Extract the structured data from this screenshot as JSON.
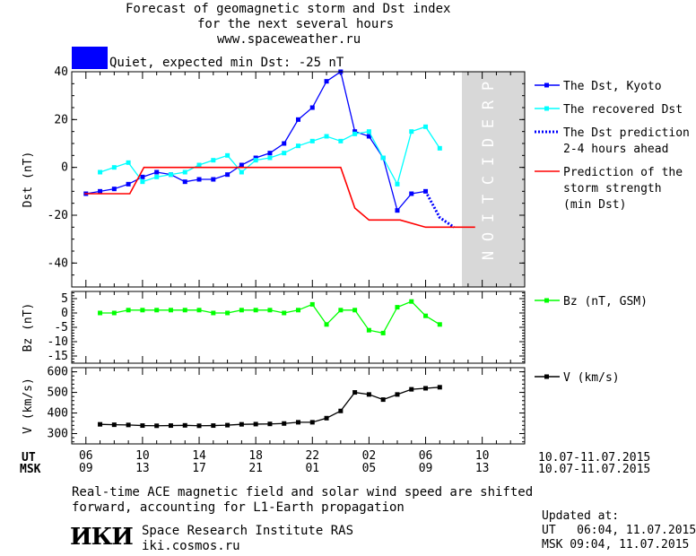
{
  "header": {
    "title_line1": "Forecast of geomagnetic storm and Dst index",
    "title_line2": "for the next several hours",
    "title_line3": "www.spaceweather.ru",
    "status_text": "Quiet, expected min Dst: -25 nT",
    "status_color": "#0000ff"
  },
  "chart_data": [
    {
      "type": "line",
      "ylabel": "Dst (nT)",
      "ylim": [
        -50,
        40
      ],
      "yticks": [
        40,
        20,
        0,
        -20,
        -40
      ],
      "prediction_label": "PREDICTION",
      "series": [
        {
          "name": "The Dst, Kyoto",
          "color": "#0000ff",
          "x": [
            6,
            7,
            8,
            9,
            10,
            11,
            12,
            13,
            14,
            15,
            16,
            17,
            18,
            19,
            20,
            21,
            22,
            23,
            24,
            25,
            26,
            27,
            28,
            29,
            30
          ],
          "y": [
            -11,
            -10,
            -9,
            -7,
            -4,
            -2,
            -3,
            -6,
            -5,
            -5,
            -3,
            1,
            4,
            6,
            10,
            20,
            25,
            36,
            40,
            15,
            13,
            4,
            -18,
            -11,
            -10
          ]
        },
        {
          "name": "The recovered Dst",
          "color": "#00ffff",
          "x": [
            7,
            8,
            9,
            10,
            11,
            12,
            13,
            14,
            15,
            16,
            17,
            18,
            19,
            20,
            21,
            22,
            23,
            24,
            25,
            26,
            27,
            28,
            29,
            30,
            31
          ],
          "y": [
            -2,
            0,
            2,
            -6,
            -4,
            -3,
            -2,
            1,
            3,
            5,
            -2,
            3,
            4,
            6,
            9,
            11,
            13,
            11,
            14,
            15,
            4,
            -7,
            15,
            17,
            8
          ]
        },
        {
          "name": "The Dst prediction\n2-4 hours ahead",
          "color": "#0000ff",
          "x": [
            30,
            31,
            32
          ],
          "y": [
            -10,
            -21,
            -25
          ]
        },
        {
          "name": "Prediction of the\nstorm strength\n(min Dst)",
          "color": "#ff0000",
          "x": [
            5.9,
            9.1,
            10.1,
            24,
            25,
            26,
            28.2,
            30,
            33.5
          ],
          "y": [
            -11,
            -11,
            0,
            0,
            -17,
            -22,
            -22,
            -25,
            -25
          ]
        }
      ]
    },
    {
      "type": "line",
      "ylabel": "Bz (nT)",
      "ylim": [
        -17.5,
        7.5
      ],
      "yticks": [
        5,
        0,
        -5,
        -10,
        -15
      ],
      "series": [
        {
          "name": "Bz (nT, GSM)",
          "color": "#00ff00",
          "x": [
            7,
            8,
            9,
            10,
            11,
            12,
            13,
            14,
            15,
            16,
            17,
            18,
            19,
            20,
            21,
            22,
            23,
            24,
            25,
            26,
            27,
            28,
            29,
            30,
            31
          ],
          "y": [
            0,
            0,
            1,
            1,
            1,
            1,
            1,
            1,
            0,
            0,
            1,
            1,
            1,
            0,
            1,
            3,
            -4,
            1,
            1,
            -6,
            -7,
            2,
            4,
            -1,
            -4
          ]
        }
      ]
    },
    {
      "type": "line",
      "ylabel": "V (km/s)",
      "ylim": [
        250,
        620
      ],
      "yticks": [
        600,
        500,
        400,
        300
      ],
      "series": [
        {
          "name": "V (km/s)",
          "color": "#000000",
          "x": [
            7,
            8,
            9,
            10,
            11,
            12,
            13,
            14,
            15,
            16,
            17,
            18,
            19,
            20,
            21,
            22,
            23,
            24,
            25,
            26,
            27,
            28,
            29,
            30,
            31
          ],
          "y": [
            345,
            343,
            342,
            339,
            338,
            339,
            340,
            338,
            339,
            341,
            345,
            346,
            347,
            349,
            355,
            355,
            375,
            410,
            500,
            490,
            465,
            490,
            515,
            520,
            525
          ]
        }
      ]
    }
  ],
  "time_axis": {
    "ut_label": "UT",
    "msk_label": "MSK",
    "ut_ticks": [
      "06",
      "10",
      "14",
      "18",
      "22",
      "02",
      "06",
      "10"
    ],
    "msk_ticks": [
      "09",
      "13",
      "17",
      "21",
      "01",
      "05",
      "09",
      "13"
    ],
    "date_range": "10.07-11.07.2015"
  },
  "footer": {
    "note_line1": "Real-time ACE magnetic field and solar wind speed are shifted",
    "note_line2": "forward, accounting for L1-Earth propagation",
    "logo": "ИКИ",
    "institute": "Space Research Institute RAS",
    "url": "iki.cosmos.ru",
    "updated_label": "Updated at:",
    "updated_ut": "UT   06:04, 11.07.2015",
    "updated_msk": "MSK 09:04, 11.07.2015"
  }
}
